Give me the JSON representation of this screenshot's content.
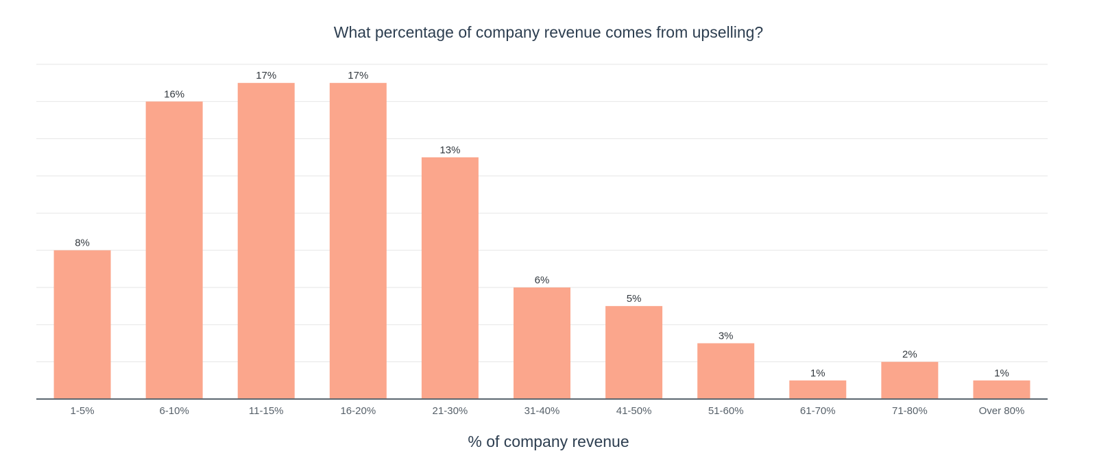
{
  "chart_data": {
    "type": "bar",
    "title": "What percentage of company revenue comes from upselling?",
    "xlabel": "% of company revenue",
    "ylabel": "",
    "categories": [
      "1-5%",
      "6-10%",
      "11-15%",
      "16-20%",
      "21-30%",
      "31-40%",
      "41-50%",
      "51-60%",
      "61-70%",
      "71-80%",
      "Over 80%"
    ],
    "values": [
      8,
      16,
      17,
      17,
      13,
      6,
      5,
      3,
      1,
      2,
      1
    ],
    "data_labels": [
      "8%",
      "16%",
      "17%",
      "17%",
      "13%",
      "6%",
      "5%",
      "3%",
      "1%",
      "2%",
      "1%"
    ],
    "ylim": [
      0,
      18
    ],
    "grid": true,
    "y_tick_labels_shown": false,
    "colors": {
      "bar": "#fba68c",
      "grid": "#e6e6e6",
      "axis": "#5a6670",
      "text": "#2d3e50"
    }
  }
}
